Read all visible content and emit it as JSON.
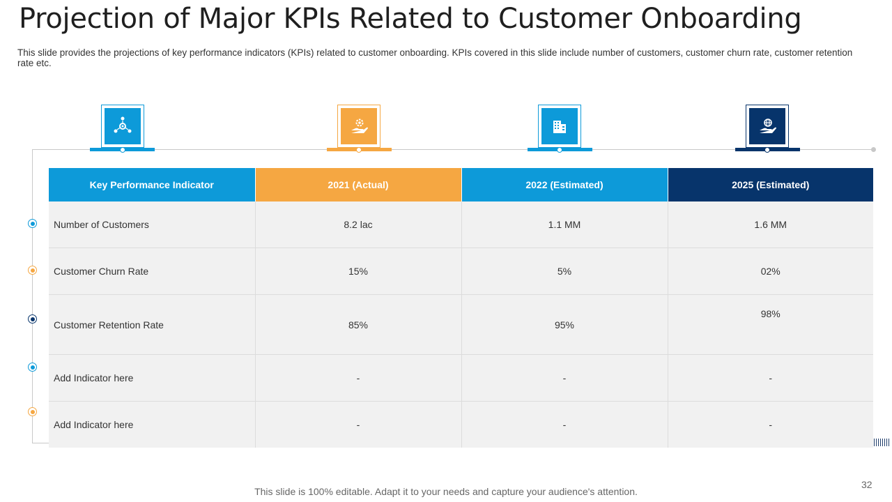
{
  "title": "Projection of Major KPIs Related to Customer Onboarding",
  "subtitle": "This slide provides the projections of key performance indicators (KPIs) related to customer onboarding. KPIs covered in this slide include number of customers, customer churn rate, customer retention rate etc.",
  "colors": {
    "blue": "#0d9ad9",
    "orange": "#f5a742",
    "navy": "#07346b"
  },
  "icons": [
    "network-gear-icon",
    "hand-gear-icon",
    "building-icon",
    "hand-globe-icon"
  ],
  "table": {
    "headers": [
      "Key Performance Indicator",
      "2021 (Actual)",
      "2022 (Estimated)",
      "2025 (Estimated)"
    ],
    "rows": [
      [
        "Number of Customers",
        "8.2 lac",
        "1.1 MM",
        "1.6 MM"
      ],
      [
        "Customer Churn Rate",
        "15%",
        "5%",
        "02%"
      ],
      [
        "Customer Retention Rate",
        "85%",
        "95%",
        "98%"
      ],
      [
        "Add Indicator here",
        "-",
        "-",
        "-"
      ],
      [
        "Add Indicator here",
        "-",
        "-",
        "-"
      ]
    ]
  },
  "footer": "This slide is 100% editable. Adapt it to your needs and capture your audience's attention.",
  "page_number": "32"
}
